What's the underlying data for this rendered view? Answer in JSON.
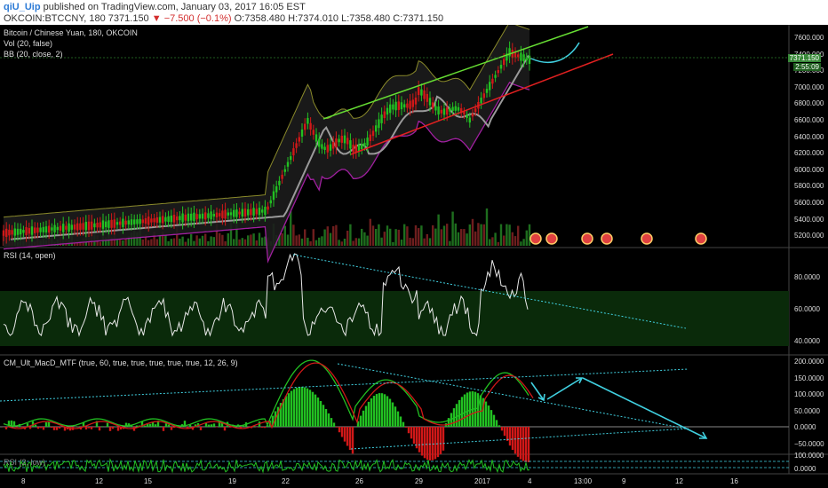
{
  "header": {
    "user": "qiU_Uip",
    "published": "published on TradingView.com, January 03, 2017 16:05 EST",
    "symbol": "OKCOIN:BTCCNY, 180",
    "last": "7371.150",
    "change": "−7.500 (−0.1%)",
    "o": "O:7358.480",
    "h": "H:7374.010",
    "l": "L:7358.480",
    "c": "C:7371.150"
  },
  "pane_main": {
    "title": "Bitcoin / Chinese Yuan, 180, OKCOIN",
    "ind1": "Vol (20, false)",
    "ind2": "BB (20, close, 2)",
    "price_label": "7371.150",
    "time_label": "2:55:09",
    "y_ticks": [
      "7600.000",
      "7400.000",
      "7200.000",
      "7000.000",
      "6800.000",
      "6600.000",
      "6400.000",
      "6200.000",
      "6000.000",
      "5800.000",
      "5600.000",
      "5400.000",
      "5200.000"
    ]
  },
  "pane_rsi": {
    "title": "RSI (14, open)",
    "y_ticks": [
      "80.0000",
      "60.0000",
      "40.0000"
    ]
  },
  "pane_macd": {
    "title": "CM_Ult_MacD_MTF (true, 60, true, true, true, true, true, 12, 26, 9)",
    "y_ticks": [
      "200.0000",
      "150.0000",
      "100.0000",
      "50.0000",
      "0.0000",
      "−50.0000"
    ]
  },
  "pane_stoch": {
    "title": "RSI (2, low)",
    "y_ticks": [
      "100.0000",
      "0.0000"
    ]
  },
  "x_ticks": [
    "8",
    "12",
    "15",
    "19",
    "22",
    "26",
    "29",
    "2017",
    "4",
    "13:00",
    "9",
    "12",
    "16"
  ],
  "colors": {
    "bg": "#000000",
    "up": "#22c022",
    "down": "#d01818",
    "channel_upper": "#66dd33",
    "channel_lower": "#e02020",
    "bb_mid": "#9a9a9a",
    "bb_band": "#a020a0",
    "projection": "#40d0e0"
  }
}
